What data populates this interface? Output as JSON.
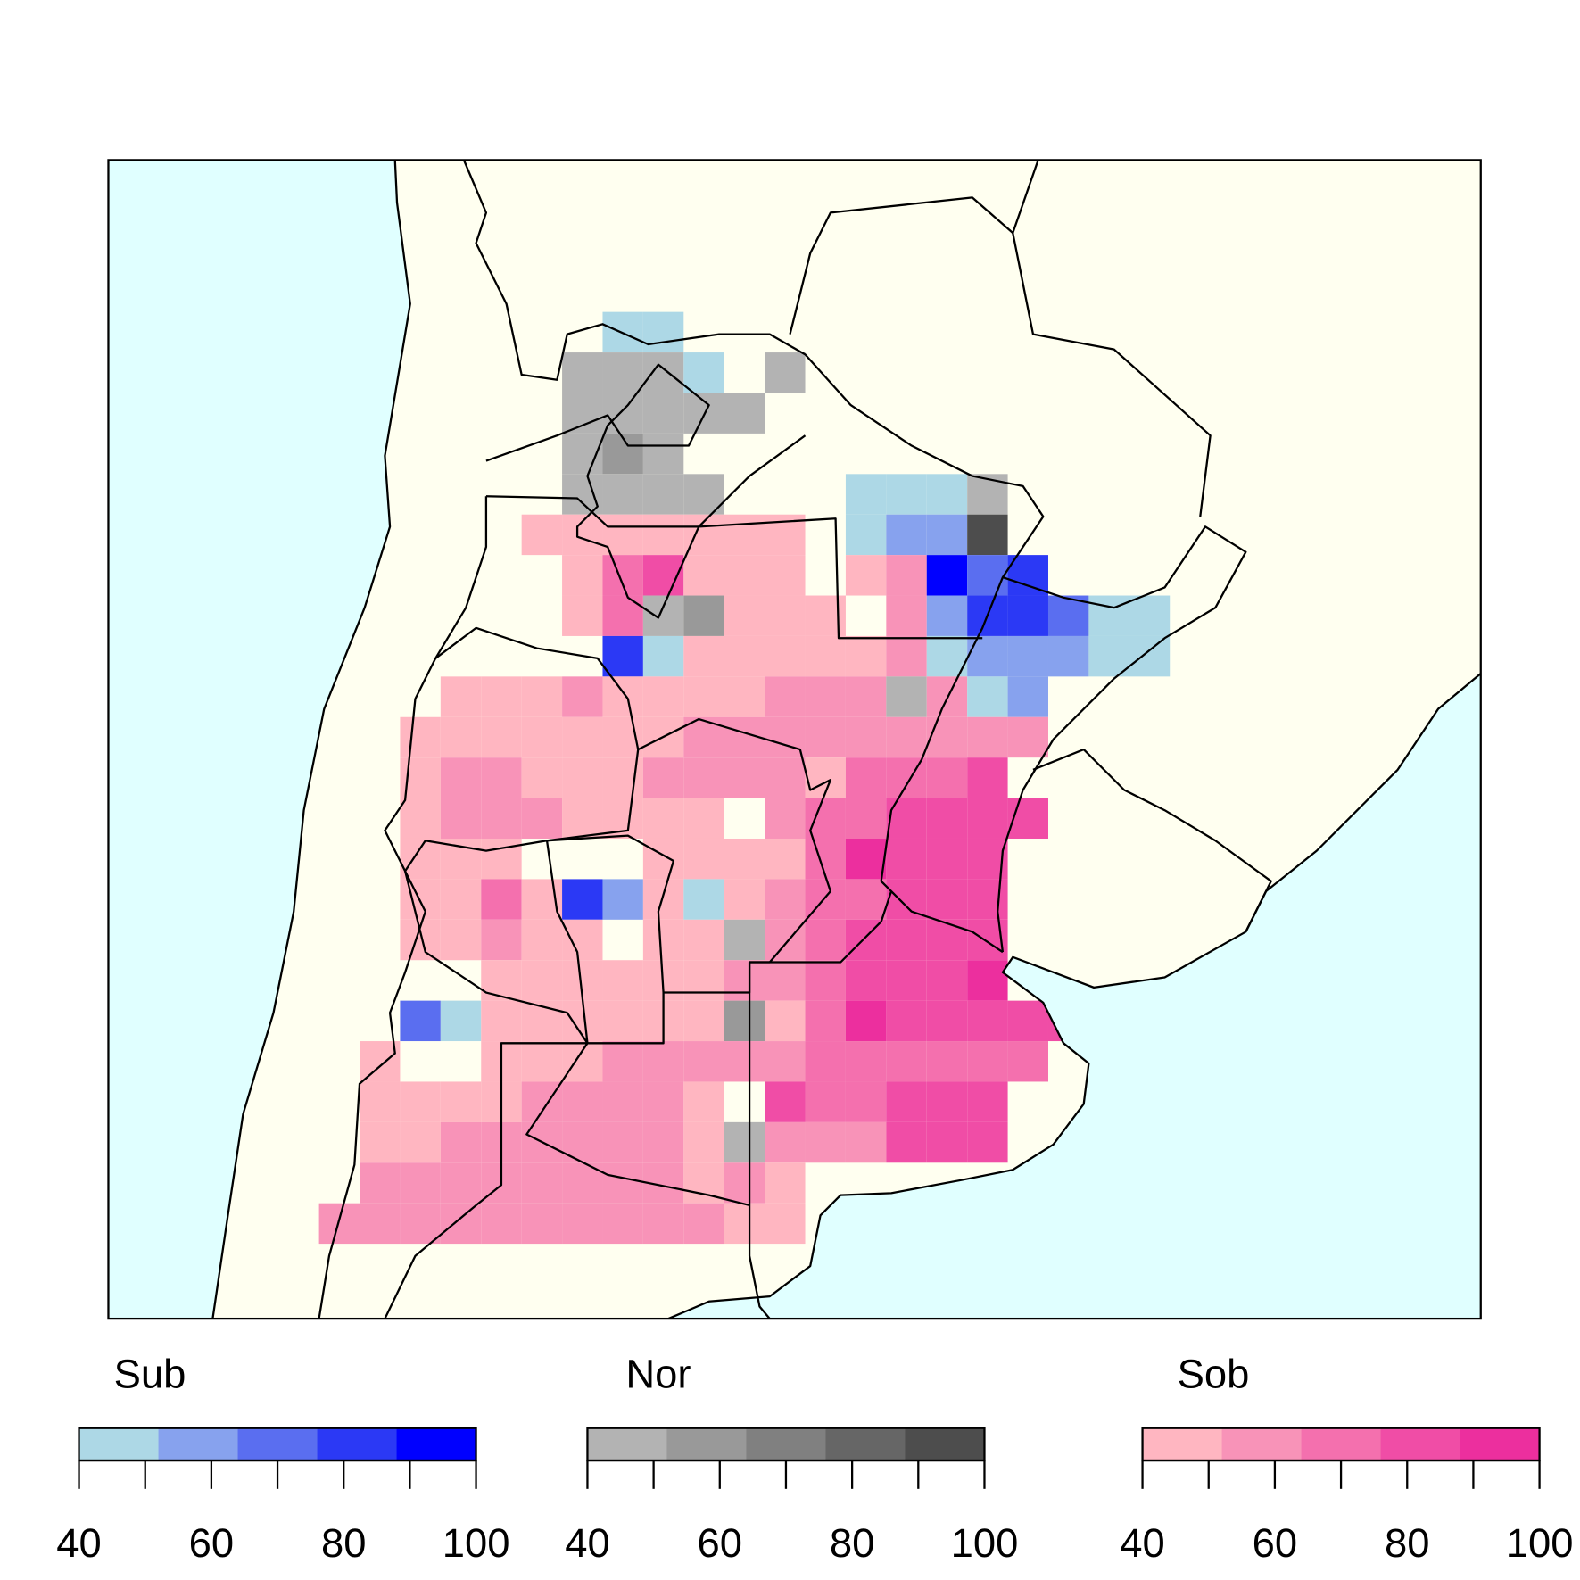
{
  "legends": [
    {
      "title": "Sub",
      "colors": [
        "#ADD8E6",
        "#87A2EE",
        "#5A6EF0",
        "#2B39F5",
        "#0000FF"
      ],
      "breaks": [
        40,
        50,
        60,
        70,
        80,
        90,
        100
      ],
      "ticks": [
        40,
        60,
        80,
        100
      ]
    },
    {
      "title": "Nor",
      "colors": [
        "#B3B3B3",
        "#999999",
        "#808080",
        "#666666",
        "#4D4D4D"
      ],
      "breaks": [
        40,
        50,
        60,
        70,
        80,
        90,
        100
      ],
      "ticks": [
        40,
        60,
        80,
        100
      ]
    },
    {
      "title": "Sob",
      "colors": [
        "#FFB6C1",
        "#F893B8",
        "#F470AE",
        "#F04DA6",
        "#EC2F9E"
      ],
      "breaks": [
        40,
        50,
        60,
        70,
        80,
        90,
        100
      ],
      "ticks": [
        40,
        60,
        80,
        100
      ]
    }
  ]
}
